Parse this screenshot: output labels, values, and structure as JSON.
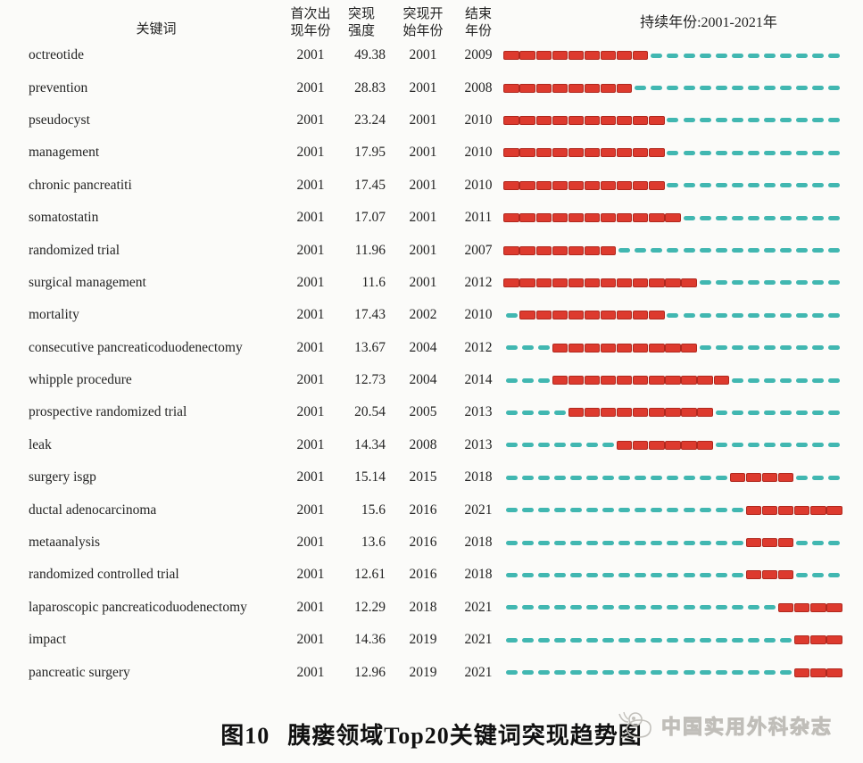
{
  "header": {
    "keyword": "关键词",
    "first_year_line1": "首次出",
    "first_year_line2": "现年份",
    "strength_line1": "突现",
    "strength_line2": "强度",
    "burst_start_line1": "突现开",
    "burst_start_line2": "始年份",
    "end_year_line1": "结束",
    "end_year_line2": "年份",
    "timeline_title": "持续年份:2001-2021年"
  },
  "chart_data": {
    "type": "table",
    "title": "胰瘘领域Top20关键词突现趋势图",
    "timeline": {
      "start": 2001,
      "end": 2021,
      "legend_burst_color": "#dd3a2e",
      "legend_idle_color": "#41b7b1"
    },
    "columns": [
      "关键词",
      "首次出现年份",
      "突现强度",
      "突现开始年份",
      "结束年份",
      "持续年份:2001-2021年"
    ],
    "rows": [
      {
        "keyword": "octreotide",
        "first_year": "2001",
        "strength": "49.38",
        "begin": "2001",
        "end": "2009"
      },
      {
        "keyword": "prevention",
        "first_year": "2001",
        "strength": "28.83",
        "begin": "2001",
        "end": "2008"
      },
      {
        "keyword": "pseudocyst",
        "first_year": "2001",
        "strength": "23.24",
        "begin": "2001",
        "end": "2010"
      },
      {
        "keyword": "management",
        "first_year": "2001",
        "strength": "17.95",
        "begin": "2001",
        "end": "2010"
      },
      {
        "keyword": "chronic pancreatiti",
        "first_year": "2001",
        "strength": "17.45",
        "begin": "2001",
        "end": "2010"
      },
      {
        "keyword": "somatostatin",
        "first_year": "2001",
        "strength": "17.07",
        "begin": "2001",
        "end": "2011"
      },
      {
        "keyword": "randomized trial",
        "first_year": "2001",
        "strength": "11.96",
        "begin": "2001",
        "end": "2007"
      },
      {
        "keyword": "surgical management",
        "first_year": "2001",
        "strength": "11.6",
        "begin": "2001",
        "end": "2012"
      },
      {
        "keyword": "mortality",
        "first_year": "2001",
        "strength": "17.43",
        "begin": "2002",
        "end": "2010"
      },
      {
        "keyword": "consecutive pancreaticoduodenectomy",
        "first_year": "2001",
        "strength": "13.67",
        "begin": "2004",
        "end": "2012"
      },
      {
        "keyword": "whipple procedure",
        "first_year": "2001",
        "strength": "12.73",
        "begin": "2004",
        "end": "2014"
      },
      {
        "keyword": "prospective randomized trial",
        "first_year": "2001",
        "strength": "20.54",
        "begin": "2005",
        "end": "2013"
      },
      {
        "keyword": "leak",
        "first_year": "2001",
        "strength": "14.34",
        "begin": "2008",
        "end": "2013"
      },
      {
        "keyword": "surgery isgp",
        "first_year": "2001",
        "strength": "15.14",
        "begin": "2015",
        "end": "2018"
      },
      {
        "keyword": "ductal adenocarcinoma",
        "first_year": "2001",
        "strength": "15.6",
        "begin": "2016",
        "end": "2021"
      },
      {
        "keyword": "metaanalysis",
        "first_year": "2001",
        "strength": "13.6",
        "begin": "2016",
        "end": "2018"
      },
      {
        "keyword": "randomized controlled trial",
        "first_year": "2001",
        "strength": "12.61",
        "begin": "2016",
        "end": "2018"
      },
      {
        "keyword": "laparoscopic pancreaticoduodenectomy",
        "first_year": "2001",
        "strength": "12.29",
        "begin": "2018",
        "end": "2021"
      },
      {
        "keyword": "impact",
        "first_year": "2001",
        "strength": "14.36",
        "begin": "2019",
        "end": "2021"
      },
      {
        "keyword": "pancreatic surgery",
        "first_year": "2001",
        "strength": "12.96",
        "begin": "2019",
        "end": "2021"
      }
    ]
  },
  "caption": {
    "label": "图10",
    "text": "胰瘘领域Top20关键词突现趋势图"
  },
  "watermark": {
    "text": "中国实用外科杂志"
  },
  "colors": {
    "burst_fill": "#dd3a2e",
    "burst_border": "#b0281e",
    "idle_fill": "#41b7b1",
    "text": "#242424",
    "background": "#fbfbf9",
    "watermark": "#c0beb9"
  }
}
